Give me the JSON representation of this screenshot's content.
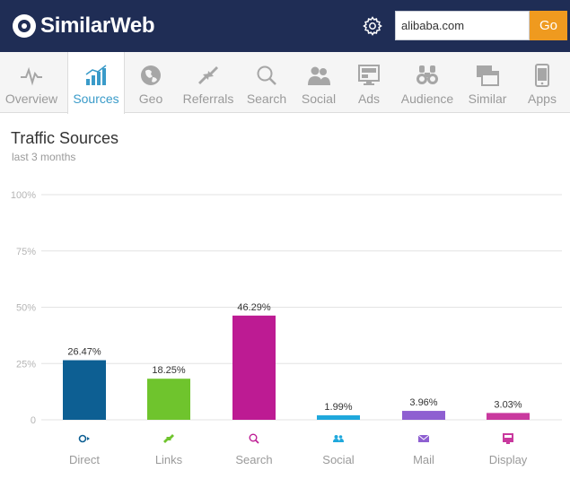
{
  "header": {
    "brand": "SimilarWeb",
    "search_value": "alibaba.com",
    "go_label": "Go"
  },
  "nav": {
    "items": [
      {
        "label": "Overview",
        "icon": "pulse-icon"
      },
      {
        "label": "Sources",
        "icon": "bar-growth-icon"
      },
      {
        "label": "Geo",
        "icon": "globe-icon"
      },
      {
        "label": "Referrals",
        "icon": "arrows-icon"
      },
      {
        "label": "Search",
        "icon": "magnifier-icon"
      },
      {
        "label": "Social",
        "icon": "people-icon"
      },
      {
        "label": "Ads",
        "icon": "ad-screen-icon"
      },
      {
        "label": "Audience",
        "icon": "binoculars-icon"
      },
      {
        "label": "Similar",
        "icon": "windows-icon"
      },
      {
        "label": "Apps",
        "icon": "phone-icon"
      }
    ],
    "active": "Sources"
  },
  "panel": {
    "title": "Traffic Sources",
    "subtitle": "last 3 months"
  },
  "colors": {
    "header_bg": "#1f2d55",
    "go_button": "#ef9a1f",
    "active_nav": "#3a9bc9"
  },
  "chart_data": {
    "type": "bar",
    "title": "Traffic Sources",
    "subtitle": "last 3 months",
    "categories": [
      "Direct",
      "Links",
      "Search",
      "Social",
      "Mail",
      "Display"
    ],
    "values": [
      26.47,
      18.25,
      46.29,
      1.99,
      3.96,
      3.03
    ],
    "value_labels": [
      "26.47%",
      "18.25%",
      "46.29%",
      "1.99%",
      "3.96%",
      "3.03%"
    ],
    "colors": [
      "#0d5f93",
      "#6fc42d",
      "#bd1b93",
      "#1fa8dc",
      "#8e5fd1",
      "#c9399e"
    ],
    "category_icons": [
      "direct-icon",
      "links-icon",
      "search-icon",
      "social-icon",
      "mail-icon",
      "display-icon"
    ],
    "ylim": [
      0,
      100
    ],
    "yticks": [
      0,
      25,
      50,
      75,
      100
    ],
    "ytick_labels": [
      "0",
      "25%",
      "50%",
      "75%",
      "100%"
    ],
    "grid": true
  }
}
